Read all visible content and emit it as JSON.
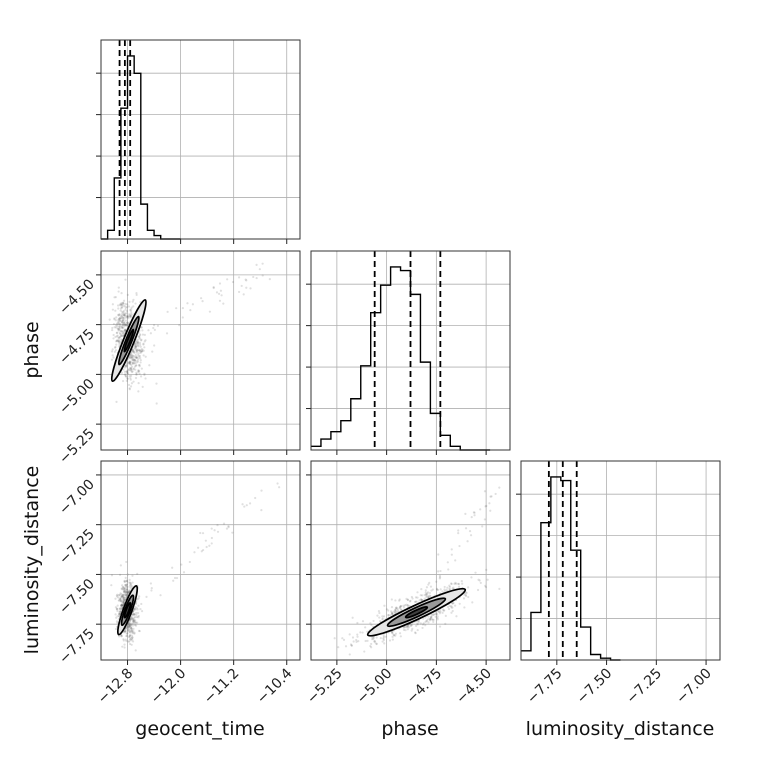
{
  "chart_data": {
    "type": "corner",
    "parameters": [
      "geocent_time",
      "phase",
      "luminosity_distance"
    ],
    "axis_labels": [
      "geocent_time",
      "phase",
      "luminosity_distance"
    ],
    "grid": true,
    "ticks": {
      "geocent_time": {
        "values": [
          -12.8,
          -12.0,
          -11.2,
          -10.4
        ],
        "labels": [
          "−12.8",
          "−12.0",
          "−11.2",
          "−10.4"
        ],
        "range": [
          -13.2,
          -10.2
        ]
      },
      "phase": {
        "values": [
          -5.25,
          -5.0,
          -4.75,
          -4.5
        ],
        "labels": [
          "−5.25",
          "−5.00",
          "−4.75",
          "−4.50"
        ],
        "range": [
          -5.38,
          -4.38
        ]
      },
      "luminosity_distance": {
        "values": [
          -7.75,
          -7.5,
          -7.25,
          -7.0
        ],
        "labels": [
          "−7.75",
          "−7.50",
          "−7.25",
          "−7.00"
        ],
        "range": [
          -7.93,
          -6.93
        ]
      }
    },
    "histograms": [
      {
        "parameter": "geocent_time",
        "bin_edges": [
          -13.2,
          -13.1,
          -13.0,
          -12.9,
          -12.8,
          -12.7,
          -12.6,
          -12.5,
          -12.4,
          -12.3,
          -12.2,
          -12.1,
          -12.0
        ],
        "counts": [
          0,
          0.5,
          3.5,
          7.5,
          10.5,
          9.5,
          2.0,
          0.5,
          0.2,
          0,
          0,
          0
        ],
        "quantiles": [
          -12.92,
          -12.84,
          -12.76
        ]
      },
      {
        "parameter": "phase",
        "bin_edges": [
          -5.38,
          -5.33,
          -5.28,
          -5.23,
          -5.18,
          -5.13,
          -5.08,
          -5.03,
          -4.98,
          -4.93,
          -4.88,
          -4.83,
          -4.78,
          -4.73,
          -4.68,
          -4.63,
          -4.58,
          -4.53,
          -4.48
        ],
        "counts": [
          0.02,
          0.06,
          0.1,
          0.16,
          0.28,
          0.46,
          0.75,
          0.9,
          1.0,
          0.98,
          0.85,
          0.48,
          0.2,
          0.08,
          0.02,
          0,
          0,
          0
        ],
        "quantiles": [
          -5.06,
          -4.88,
          -4.73
        ]
      },
      {
        "parameter": "luminosity_distance",
        "bin_edges": [
          -7.93,
          -7.88,
          -7.83,
          -7.78,
          -7.73,
          -7.68,
          -7.63,
          -7.58,
          -7.53,
          -7.48,
          -7.43
        ],
        "counts": [
          0.05,
          0.26,
          0.75,
          1.0,
          0.98,
          0.6,
          0.18,
          0.03,
          0.01,
          0
        ],
        "quantiles": [
          -7.79,
          -7.72,
          -7.65
        ]
      }
    ],
    "pairs": [
      {
        "x": "geocent_time",
        "y": "phase",
        "center": [
          -12.78,
          -4.83
        ],
        "contours": [
          {
            "rx": 0.16,
            "ry": 0.22,
            "angle": 68
          },
          {
            "rx": 0.09,
            "ry": 0.13,
            "angle": 68
          },
          {
            "rx": 0.04,
            "ry": 0.06,
            "angle": 68
          }
        ]
      },
      {
        "x": "geocent_time",
        "y": "luminosity_distance",
        "center": [
          -12.8,
          -7.68
        ],
        "contours": [
          {
            "rx": 0.13,
            "ry": 0.13,
            "angle": 70
          },
          {
            "rx": 0.08,
            "ry": 0.08,
            "angle": 70
          },
          {
            "rx": 0.04,
            "ry": 0.04,
            "angle": 70
          }
        ]
      },
      {
        "x": "phase",
        "y": "luminosity_distance",
        "center": [
          -4.85,
          -7.69
        ],
        "contours": [
          {
            "rx": 0.27,
            "ry": 0.07,
            "angle": 25
          },
          {
            "rx": 0.16,
            "ry": 0.045,
            "angle": 25
          },
          {
            "rx": 0.06,
            "ry": 0.02,
            "angle": 25
          }
        ]
      }
    ]
  }
}
